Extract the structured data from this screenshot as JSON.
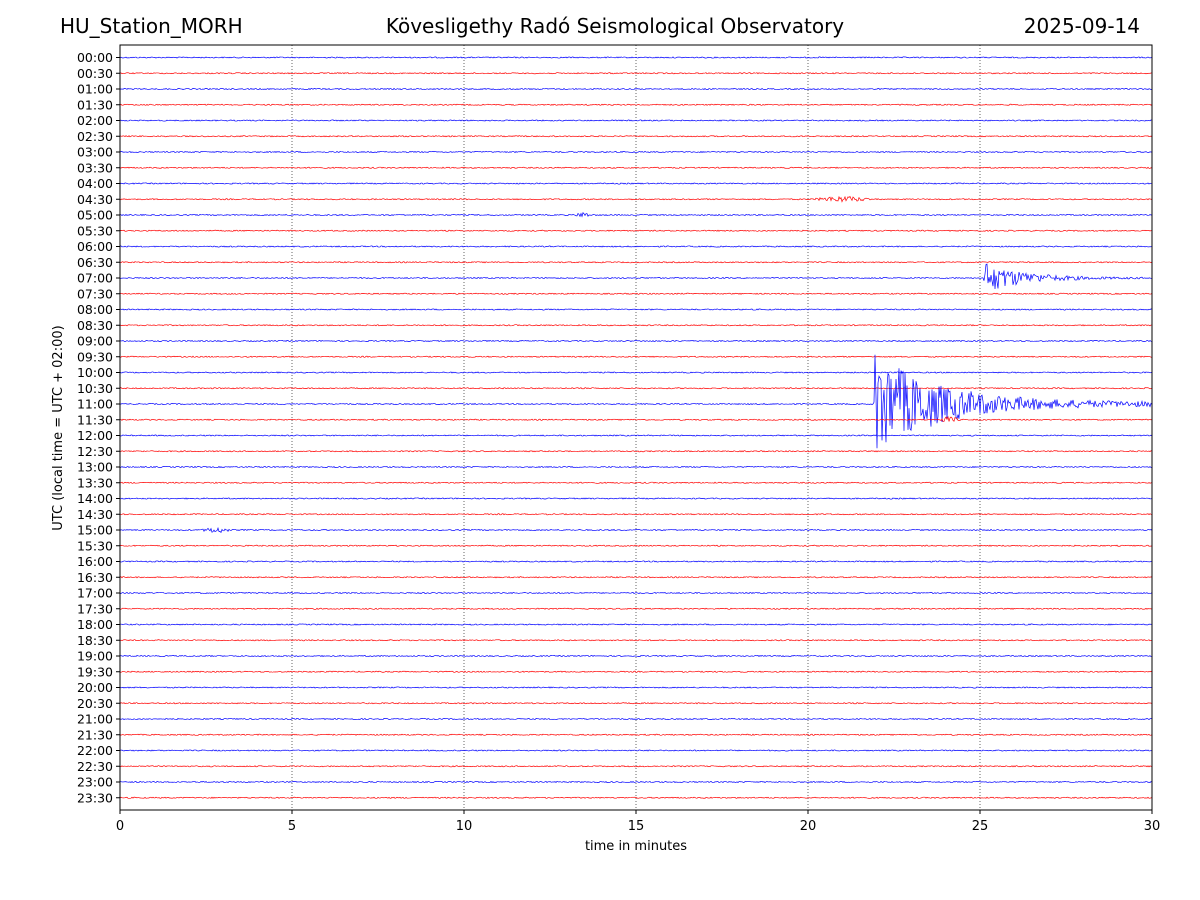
{
  "header": {
    "station": "HU_Station_MORH",
    "title": "Kövesligethy Radó Seismological Observatory",
    "date": "2025-09-14"
  },
  "colors": {
    "trace_a": "#0000ff",
    "trace_b": "#ff0000",
    "grid": "#000000",
    "axis": "#000000"
  },
  "chart_data": {
    "type": "line",
    "title": "Kövesligethy Radó Seismological Observatory",
    "xlabel": "time in minutes",
    "ylabel": "UTC (local time = UTC + 02:00)",
    "xlim": [
      0,
      30
    ],
    "x_ticks": [
      0,
      5,
      10,
      15,
      20,
      25,
      30
    ],
    "grid": "vertical dotted lines at x ticks",
    "legend": "none",
    "rows": [
      "00:00",
      "00:30",
      "01:00",
      "01:30",
      "02:00",
      "02:30",
      "03:00",
      "03:30",
      "04:00",
      "04:30",
      "05:00",
      "05:30",
      "06:00",
      "06:30",
      "07:00",
      "07:30",
      "08:00",
      "08:30",
      "09:00",
      "09:30",
      "10:00",
      "10:30",
      "11:00",
      "11:30",
      "12:00",
      "12:30",
      "13:00",
      "13:30",
      "14:00",
      "14:30",
      "15:00",
      "15:30",
      "16:00",
      "16:30",
      "17:00",
      "17:30",
      "18:00",
      "18:30",
      "19:00",
      "19:30",
      "20:00",
      "20:30",
      "21:00",
      "21:30",
      "22:00",
      "22:30",
      "23:00",
      "23:30"
    ],
    "row_colors": "alternating blue (full hour) and red (half hour)",
    "events": [
      {
        "row": "04:30",
        "start_min": 20.0,
        "duration_min": 2.0,
        "amplitude": "small"
      },
      {
        "row": "05:00",
        "start_min": 13.2,
        "duration_min": 0.5,
        "amplitude": "small"
      },
      {
        "row": "07:00",
        "start_min": 25.1,
        "duration_min": 4.9,
        "amplitude": "medium"
      },
      {
        "row": "11:00",
        "start_min": 21.9,
        "duration_min": 8.1,
        "amplitude": "large"
      },
      {
        "row": "11:30",
        "start_min": 23.7,
        "duration_min": 0.8,
        "amplitude": "small"
      },
      {
        "row": "15:00",
        "start_min": 2.3,
        "duration_min": 1.0,
        "amplitude": "small"
      }
    ]
  }
}
